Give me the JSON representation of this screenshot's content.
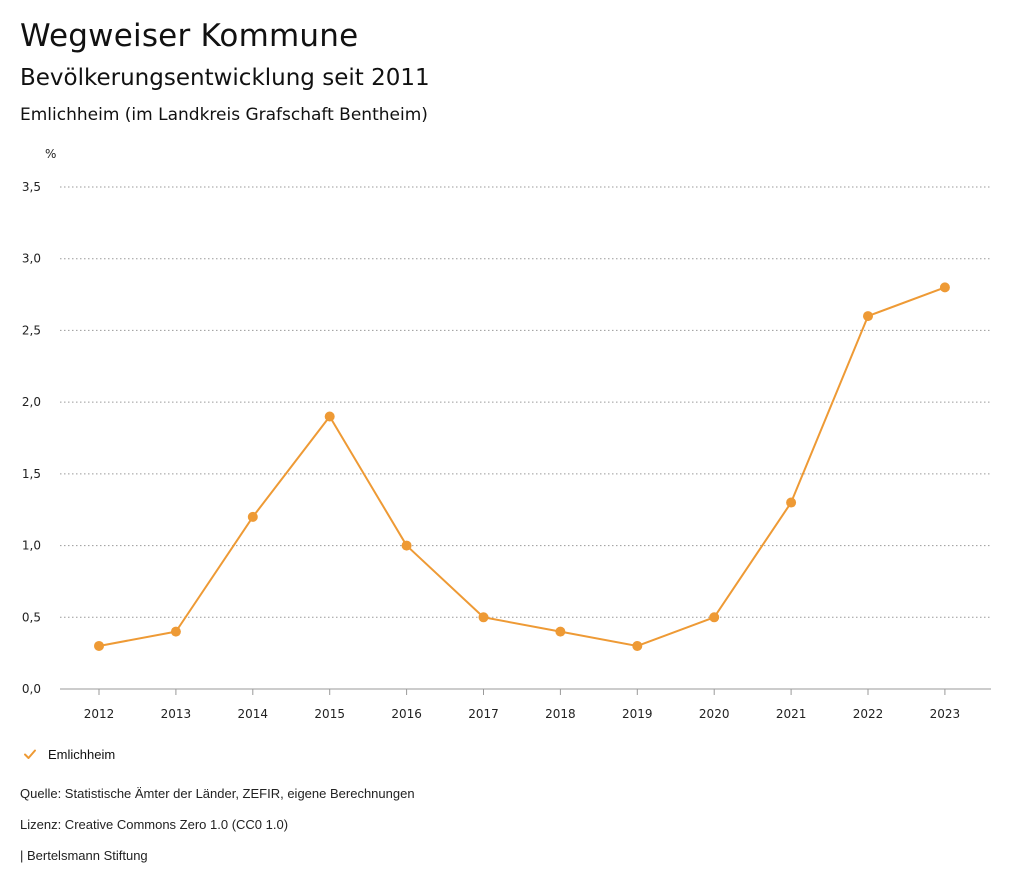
{
  "header": {
    "title": "Wegweiser Kommune",
    "subtitle": "Bevölkerungsentwicklung seit 2011",
    "region": "Emlichheim (im Landkreis Grafschaft Bentheim)"
  },
  "colors": {
    "series": "#ee9a35",
    "grid": "#9a9a9a",
    "axis": "#9a9a9a",
    "text": "#222222"
  },
  "chart_data": {
    "type": "line",
    "title": "Bevölkerungsentwicklung seit 2011",
    "unit_label": "%",
    "xlabel": "",
    "ylabel": "",
    "categories": [
      "2012",
      "2013",
      "2014",
      "2015",
      "2016",
      "2017",
      "2018",
      "2019",
      "2020",
      "2021",
      "2022",
      "2023"
    ],
    "series": [
      {
        "name": "Emlichheim",
        "values": [
          0.3,
          0.4,
          1.2,
          1.9,
          1.0,
          0.5,
          0.4,
          0.3,
          0.5,
          1.3,
          2.6,
          2.8
        ]
      }
    ],
    "ylim": [
      0,
      3.5
    ],
    "y_ticks": [
      0,
      0.5,
      1.0,
      1.5,
      2.0,
      2.5,
      3.0,
      3.5
    ],
    "y_tick_labels": [
      "0,0",
      "0,5",
      "1,0",
      "1,5",
      "2,0",
      "2,5",
      "3,0",
      "3,5"
    ],
    "grid": true,
    "grid_style": "dotted",
    "legend_position": "bottom-left",
    "markers": true
  },
  "legend": {
    "icon": "check-icon",
    "label": "Emlichheim"
  },
  "footer": {
    "source": "Quelle: Statistische Ämter der Länder, ZEFIR, eigene Berechnungen",
    "license": "Lizenz: Creative Commons Zero 1.0 (CC0 1.0)",
    "publisher": "| Bertelsmann Stiftung"
  }
}
